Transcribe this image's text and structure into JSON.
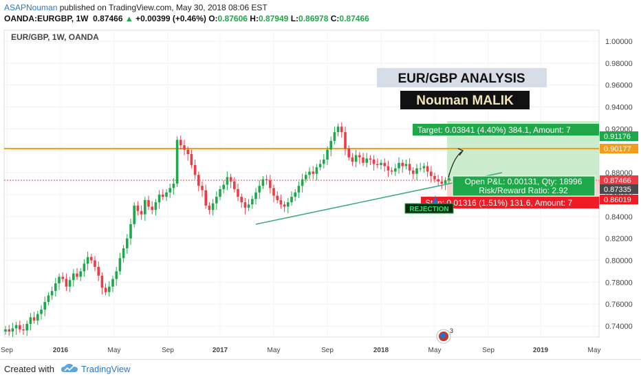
{
  "header": {
    "author": "ASAPNouman",
    "published_text": " published on TradingView.com, May 30, 2018 08:06 EST",
    "symbol": "OANDA:EURGBP, 1W",
    "last": "0.87466",
    "change": "+0.00399 (+0.46%)",
    "ohlc_o_label": "O:",
    "ohlc_o": "0.87606",
    "ohlc_h_label": "H:",
    "ohlc_h": "0.87949",
    "ohlc_l_label": "L:",
    "ohlc_l": "0.86978",
    "ohlc_c_label": "C:",
    "ohlc_c": "0.87466"
  },
  "chart": {
    "symbol_label": "EUR/GBP, 1W, OANDA",
    "title_box": "EUR/GBP ANALYSIS",
    "author_box": "Nouman MALIK",
    "target_label": "Target: 0.03841 (4.40%) 384.1, Amount: 7",
    "pnl_label": "Open P&L: 0.00131, Qty: 18996",
    "rr_label": "Risk/Reward Ratio: 2.92",
    "stop_label": "Stop: 0.01316 (1.51%) 131.6, Amount: 7",
    "rejection_label": "REJECTION",
    "badge_number": "3",
    "price_tags": [
      {
        "text": "0.91176",
        "color": "#1ea84a"
      },
      {
        "text": "0.90177",
        "color": "#f29d1c"
      },
      {
        "text": "0.87466",
        "color": "#ef3b45"
      },
      {
        "text": "0.87335",
        "color": "#4a4a4a"
      },
      {
        "text": "0.86019",
        "color": "#ef1c25"
      }
    ],
    "colors": {
      "up": "#1ea84a",
      "down": "#ef3b45",
      "resistance": "#f29d1c",
      "trendline": "#3aa77d"
    }
  },
  "footer": {
    "created_with": "Created with",
    "brand": "TradingView"
  },
  "chart_data": {
    "type": "candlestick",
    "symbol": "EUR/GBP",
    "timeframe": "1W",
    "ylim": [
      0.73,
      1.01
    ],
    "y_ticks": [
      "1.00000",
      "0.98000",
      "0.96000",
      "0.94000",
      "0.92000",
      "0.90000",
      "0.88000",
      "0.86000",
      "0.84000",
      "0.82000",
      "0.80000",
      "0.78000",
      "0.76000",
      "0.74000"
    ],
    "x_ticks": [
      "Sep",
      "2016",
      "May",
      "Sep",
      "2017",
      "May",
      "Sep",
      "2018",
      "May",
      "Sep",
      "2019",
      "May"
    ],
    "horizontal_lines": [
      {
        "price": 0.90177
      }
    ],
    "last_price": 0.87466,
    "position": {
      "entry": 0.87335,
      "target": 0.91176,
      "stop": 0.86019
    },
    "close_series": [
      0.737,
      0.735,
      0.738,
      0.741,
      0.737,
      0.736,
      0.742,
      0.748,
      0.745,
      0.751,
      0.755,
      0.762,
      0.768,
      0.772,
      0.779,
      0.785,
      0.783,
      0.776,
      0.782,
      0.788,
      0.785,
      0.79,
      0.797,
      0.803,
      0.8,
      0.794,
      0.786,
      0.775,
      0.771,
      0.776,
      0.783,
      0.79,
      0.802,
      0.811,
      0.82,
      0.833,
      0.85,
      0.845,
      0.842,
      0.855,
      0.849,
      0.846,
      0.853,
      0.86,
      0.858,
      0.862,
      0.866,
      0.87,
      0.91,
      0.905,
      0.901,
      0.897,
      0.887,
      0.878,
      0.868,
      0.864,
      0.85,
      0.846,
      0.852,
      0.858,
      0.865,
      0.869,
      0.876,
      0.872,
      0.865,
      0.858,
      0.853,
      0.848,
      0.851,
      0.856,
      0.862,
      0.868,
      0.874,
      0.873,
      0.866,
      0.859,
      0.855,
      0.851,
      0.849,
      0.853,
      0.858,
      0.862,
      0.868,
      0.874,
      0.878,
      0.881,
      0.879,
      0.885,
      0.888,
      0.892,
      0.901,
      0.909,
      0.917,
      0.922,
      0.917,
      0.902,
      0.894,
      0.89,
      0.896,
      0.894,
      0.889,
      0.893,
      0.892,
      0.888,
      0.887,
      0.889,
      0.886,
      0.882,
      0.881,
      0.884,
      0.889,
      0.886,
      0.888,
      0.882,
      0.879,
      0.884,
      0.884,
      0.886,
      0.881,
      0.877,
      0.874,
      0.872,
      0.87,
      0.873,
      0.875
    ]
  }
}
